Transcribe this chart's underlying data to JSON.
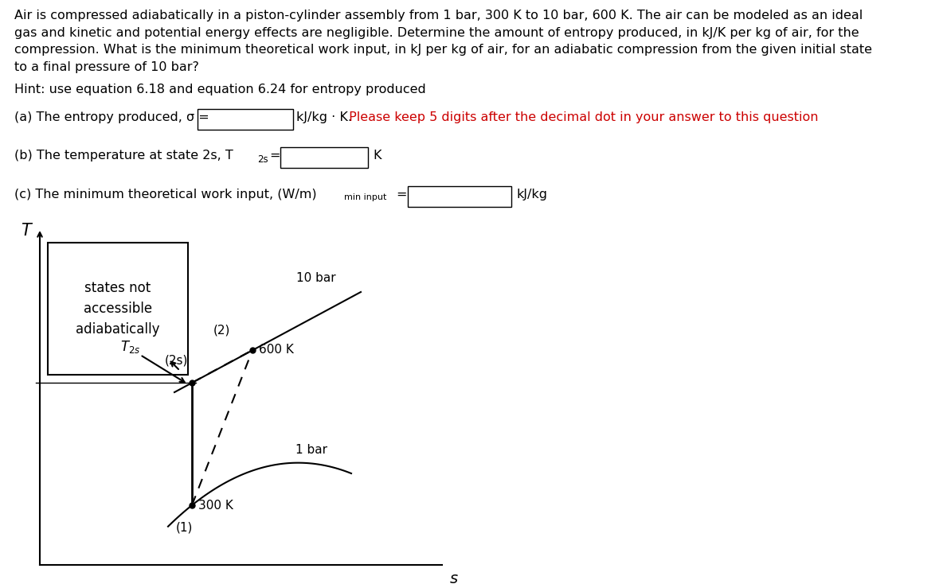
{
  "title_text": "Air is compressed adiabatically in a piston-cylinder assembly from 1 bar, 300 K to 10 bar, 600 K. The air can be modeled as an ideal\ngas and kinetic and potential energy effects are negligible. Determine the amount of entropy produced, in kJ/K per kg of air, for the\ncompression. What is the minimum theoretical work input, in kJ per kg of air, for an adiabatic compression from the given initial state\nto a final pressure of 10 bar?",
  "hint_text": "Hint: use equation 6.18 and equation 6.24 for entropy produced",
  "part_a_red": " Please keep 5 digits after the decimal dot in your answer to this question",
  "diagram_title": "states not\naccessible\nadiabatically",
  "label_T": "T",
  "label_S": "s",
  "label_10bar": "10 bar",
  "label_1bar": "1 bar",
  "label_600K": "600 K",
  "label_300K": "300 K",
  "label_2": "(2)",
  "label_2s": "(2s)",
  "label_1": "(1)",
  "bg_color": "#ffffff",
  "text_color": "#000000",
  "red_color": "#cc0000"
}
